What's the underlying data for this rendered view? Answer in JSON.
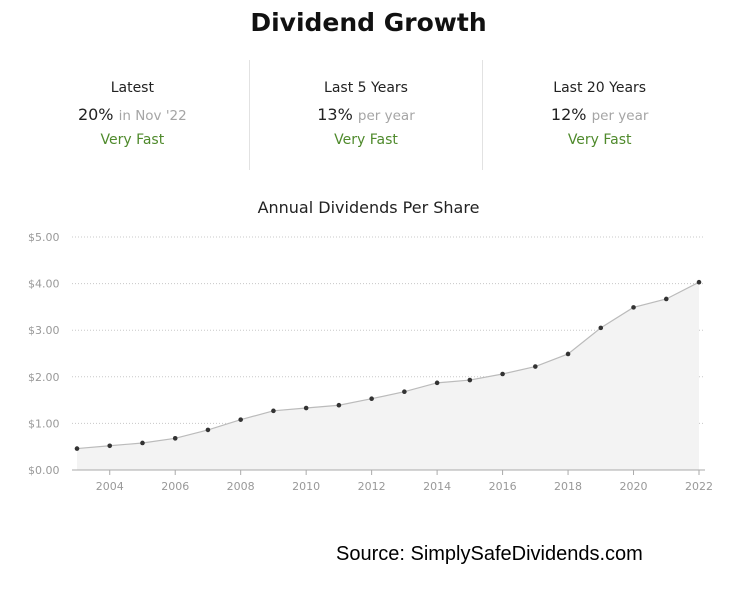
{
  "title": "Dividend Growth",
  "stats": [
    {
      "label": "Latest",
      "value": "20%",
      "sub": "in Nov '22",
      "rating": "Very Fast"
    },
    {
      "label": "Last 5 Years",
      "value": "13%",
      "sub": "per year",
      "rating": "Very Fast"
    },
    {
      "label": "Last 20 Years",
      "value": "12%",
      "sub": "per year",
      "rating": "Very Fast"
    }
  ],
  "colors": {
    "rating": "#4f8a2c",
    "line": "#bbbbbb",
    "area": "#f3f3f3",
    "point": "#333333"
  },
  "chart_data": {
    "type": "area",
    "title": "Annual Dividends Per Share",
    "xlabel": "",
    "ylabel": "",
    "x": [
      2003,
      2004,
      2005,
      2006,
      2007,
      2008,
      2009,
      2010,
      2011,
      2012,
      2013,
      2014,
      2015,
      2016,
      2017,
      2018,
      2019,
      2020,
      2021,
      2022
    ],
    "values": [
      0.46,
      0.52,
      0.58,
      0.68,
      0.86,
      1.08,
      1.27,
      1.33,
      1.39,
      1.53,
      1.68,
      1.87,
      1.93,
      2.06,
      2.22,
      2.49,
      3.05,
      3.49,
      3.67,
      4.03
    ],
    "xticks": [
      2004,
      2006,
      2008,
      2010,
      2012,
      2014,
      2016,
      2018,
      2020,
      2022
    ],
    "xtick_labels": [
      "2004",
      "2006",
      "2008",
      "2010",
      "2012",
      "2014",
      "2016",
      "2018",
      "2020",
      "2022"
    ],
    "yticks": [
      0,
      1,
      2,
      3,
      4,
      5
    ],
    "ytick_labels": [
      "$0.00",
      "$1.00",
      "$2.00",
      "$3.00",
      "$4.00",
      "$5.00"
    ],
    "ylim": [
      0,
      5
    ],
    "xlim": [
      2003,
      2022
    ],
    "grid": true
  },
  "source": "Source: SimplySafeDividends.com"
}
